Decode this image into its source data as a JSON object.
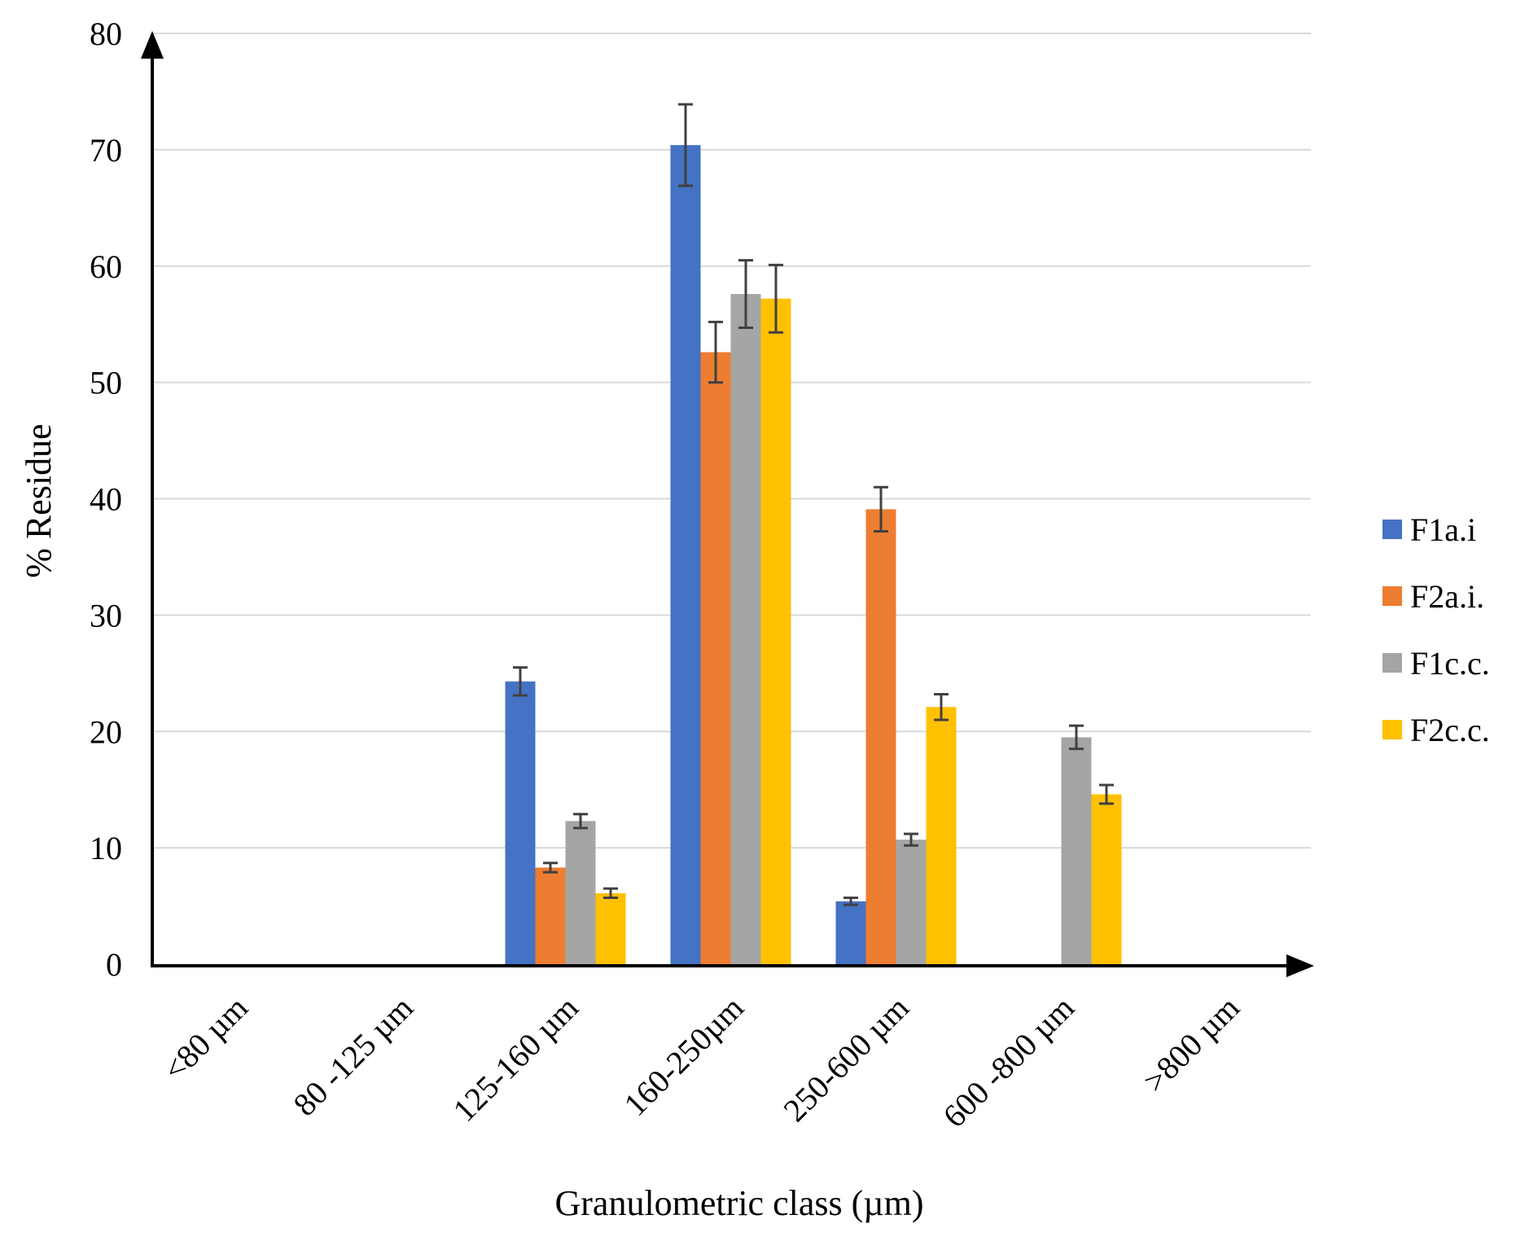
{
  "chart_data": {
    "type": "bar",
    "title": "",
    "xlabel": "Granulometric class (µm)",
    "ylabel": "% Residue",
    "ylim": [
      0,
      80
    ],
    "yticks": [
      0,
      10,
      20,
      30,
      40,
      50,
      60,
      70,
      80
    ],
    "grid": true,
    "legend_position": "right",
    "categories": [
      "<80 µm",
      "80 -125 µm",
      "125-160 µm",
      "160-250µm",
      "250-600 µm",
      "600 -800 µm",
      ">800 µm"
    ],
    "series": [
      {
        "name": "F1a.i",
        "color": "#4472C4",
        "values": [
          0,
          0,
          24.3,
          70.4,
          5.4,
          0,
          0
        ],
        "errors": [
          0,
          0,
          1.2,
          3.5,
          0.3,
          0,
          0
        ]
      },
      {
        "name": "F2a.i.",
        "color": "#ED7D31",
        "values": [
          0,
          0,
          8.3,
          52.6,
          39.1,
          0,
          0
        ],
        "errors": [
          0,
          0,
          0.4,
          2.6,
          1.9,
          0,
          0
        ]
      },
      {
        "name": "F1c.c.",
        "color": "#A5A5A5",
        "values": [
          0,
          0,
          12.3,
          57.6,
          10.7,
          19.5,
          0
        ],
        "errors": [
          0,
          0,
          0.6,
          2.9,
          0.5,
          1.0,
          0
        ]
      },
      {
        "name": "F2c.c.",
        "color": "#FFC000",
        "values": [
          0,
          0,
          6.1,
          57.2,
          22.1,
          14.6,
          0
        ],
        "errors": [
          0,
          0,
          0.4,
          2.9,
          1.1,
          0.8,
          0
        ]
      }
    ]
  }
}
